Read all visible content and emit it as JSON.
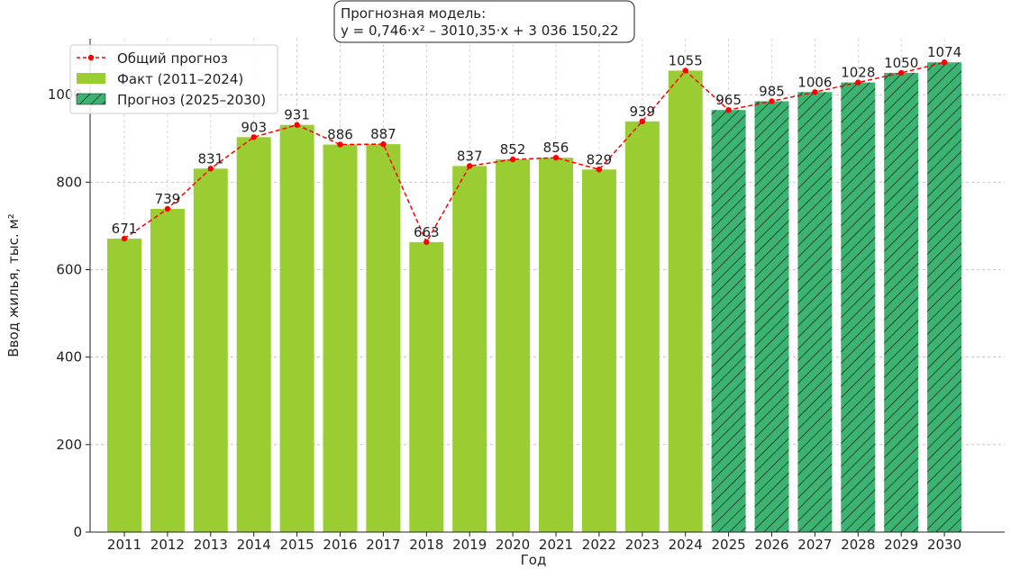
{
  "chart_data": {
    "type": "bar",
    "xlabel": "Год",
    "ylabel": "Ввод жилья, тыс. м²",
    "ylim": [
      0,
      1128
    ],
    "yticks": [
      0,
      200,
      400,
      600,
      800,
      1000
    ],
    "grid": true,
    "legend_placement": "top-left",
    "categories": [
      "2011",
      "2012",
      "2013",
      "2014",
      "2015",
      "2016",
      "2017",
      "2018",
      "2019",
      "2020",
      "2021",
      "2022",
      "2023",
      "2024",
      "2025",
      "2026",
      "2027",
      "2028",
      "2029",
      "2030"
    ],
    "values": [
      671,
      739,
      831,
      903,
      931,
      886,
      887,
      663,
      837,
      852,
      856,
      829,
      939,
      1055,
      965,
      985,
      1006,
      1028,
      1050,
      1074
    ],
    "forecast_from_index": 14,
    "series": [
      {
        "name": "Общий прогноз",
        "type": "line",
        "color": "#ff0000"
      },
      {
        "name": "Факт (2011–2024)",
        "type": "bar",
        "color": "#9acd32"
      },
      {
        "name": "Прогноз (2025–2030)",
        "type": "bar-hatched",
        "color": "#3cb371"
      }
    ],
    "annotation": {
      "line1": "Прогнозная модель:",
      "line2": "y = 0,746·x² – 3010,35·x + 3 036 150,22"
    }
  }
}
